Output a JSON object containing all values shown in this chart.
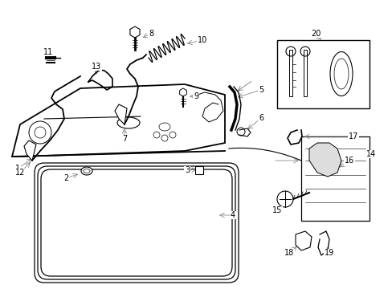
{
  "bg_color": "#ffffff",
  "line_color": "#000000",
  "gray_color": "#888888",
  "figsize": [
    4.89,
    3.6
  ],
  "dpi": 100
}
